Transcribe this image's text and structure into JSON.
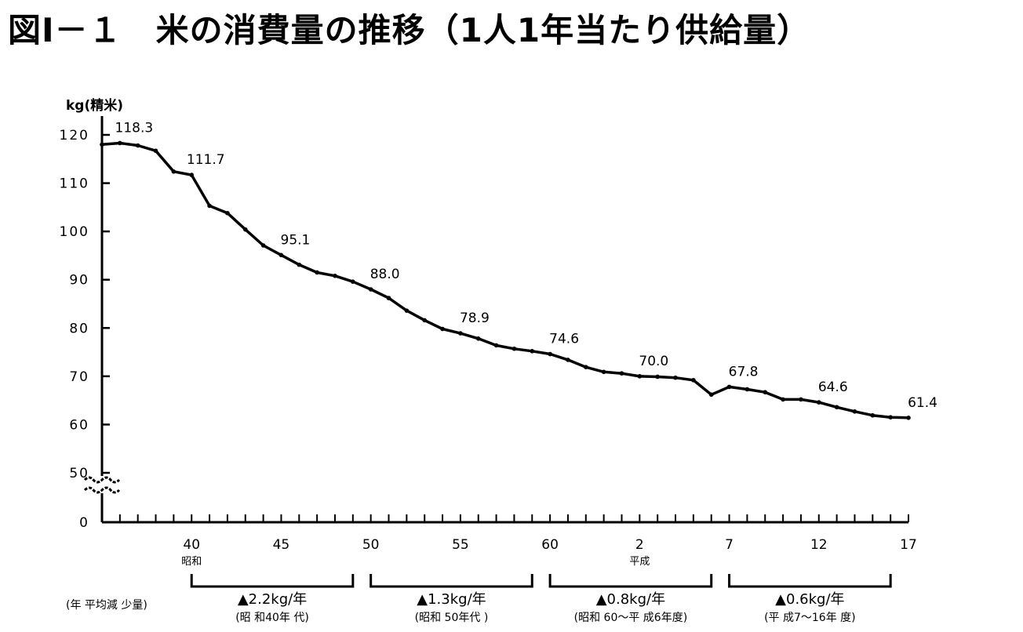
{
  "title": "図Ⅰ－１　米の消費量の推移（1人1年当たり供給量）",
  "chart_data": {
    "type": "line",
    "ylabel": "kg(精米)",
    "y_ticks": [
      0,
      50,
      60,
      70,
      80,
      90,
      100,
      110,
      120
    ],
    "y_break": [
      0,
      50
    ],
    "ylim": [
      0,
      120
    ],
    "x_ticks": [
      {
        "year": 1965,
        "label": "40",
        "era": "昭和"
      },
      {
        "year": 1970,
        "label": "45",
        "era": ""
      },
      {
        "year": 1975,
        "label": "50",
        "era": ""
      },
      {
        "year": 1980,
        "label": "55",
        "era": ""
      },
      {
        "year": 1985,
        "label": "60",
        "era": ""
      },
      {
        "year": 1990,
        "label": "2",
        "era": "平成"
      },
      {
        "year": 1995,
        "label": "7",
        "era": ""
      },
      {
        "year": 2000,
        "label": "12",
        "era": ""
      },
      {
        "year": 2005,
        "label": "17",
        "era": ""
      }
    ],
    "xlim": [
      1960,
      2005
    ],
    "series": [
      {
        "values": [
          {
            "x": 1960,
            "y": 118.0
          },
          {
            "x": 1961,
            "y": 118.3
          },
          {
            "x": 1962,
            "y": 117.8
          },
          {
            "x": 1963,
            "y": 116.7
          },
          {
            "x": 1964,
            "y": 112.4
          },
          {
            "x": 1965,
            "y": 111.7
          },
          {
            "x": 1966,
            "y": 105.3
          },
          {
            "x": 1967,
            "y": 103.8
          },
          {
            "x": 1968,
            "y": 100.4
          },
          {
            "x": 1969,
            "y": 97.1
          },
          {
            "x": 1970,
            "y": 95.1
          },
          {
            "x": 1971,
            "y": 93.1
          },
          {
            "x": 1972,
            "y": 91.5
          },
          {
            "x": 1973,
            "y": 90.8
          },
          {
            "x": 1974,
            "y": 89.6
          },
          {
            "x": 1975,
            "y": 88.0
          },
          {
            "x": 1976,
            "y": 86.2
          },
          {
            "x": 1977,
            "y": 83.6
          },
          {
            "x": 1978,
            "y": 81.6
          },
          {
            "x": 1979,
            "y": 79.8
          },
          {
            "x": 1980,
            "y": 78.9
          },
          {
            "x": 1981,
            "y": 77.8
          },
          {
            "x": 1982,
            "y": 76.4
          },
          {
            "x": 1983,
            "y": 75.7
          },
          {
            "x": 1984,
            "y": 75.2
          },
          {
            "x": 1985,
            "y": 74.6
          },
          {
            "x": 1986,
            "y": 73.4
          },
          {
            "x": 1987,
            "y": 71.9
          },
          {
            "x": 1988,
            "y": 70.9
          },
          {
            "x": 1989,
            "y": 70.6
          },
          {
            "x": 1990,
            "y": 70.0
          },
          {
            "x": 1991,
            "y": 69.9
          },
          {
            "x": 1992,
            "y": 69.7
          },
          {
            "x": 1993,
            "y": 69.2
          },
          {
            "x": 1994,
            "y": 66.2
          },
          {
            "x": 1995,
            "y": 67.8
          },
          {
            "x": 1996,
            "y": 67.3
          },
          {
            "x": 1997,
            "y": 66.7
          },
          {
            "x": 1998,
            "y": 65.2
          },
          {
            "x": 1999,
            "y": 65.2
          },
          {
            "x": 2000,
            "y": 64.6
          },
          {
            "x": 2001,
            "y": 63.6
          },
          {
            "x": 2002,
            "y": 62.7
          },
          {
            "x": 2003,
            "y": 61.9
          },
          {
            "x": 2004,
            "y": 61.5
          },
          {
            "x": 2005,
            "y": 61.4
          }
        ]
      }
    ],
    "data_labels": [
      {
        "x": 1961,
        "y": 118.3,
        "text": "118.3"
      },
      {
        "x": 1965,
        "y": 111.7,
        "text": "111.7"
      },
      {
        "x": 1970,
        "y": 95.1,
        "text": "95.1"
      },
      {
        "x": 1975,
        "y": 88.0,
        "text": "88.0"
      },
      {
        "x": 1980,
        "y": 78.9,
        "text": "78.9"
      },
      {
        "x": 1985,
        "y": 74.6,
        "text": "74.6"
      },
      {
        "x": 1990,
        "y": 70.0,
        "text": "70.0"
      },
      {
        "x": 1995,
        "y": 67.8,
        "text": "67.8"
      },
      {
        "x": 2000,
        "y": 64.6,
        "text": "64.6"
      },
      {
        "x": 2005,
        "y": 61.4,
        "text": "61.4"
      }
    ],
    "annual_decrease_label": "(年 平均減 少量)",
    "annual_decrease": [
      {
        "from": 1965,
        "to": 1974,
        "value": "▲2.2kg/年",
        "period": "(昭 和40年 代)"
      },
      {
        "from": 1975,
        "to": 1984,
        "value": "▲1.3kg/年",
        "period": "(昭和 50年代 )"
      },
      {
        "from": 1985,
        "to": 1994,
        "value": "▲0.8kg/年",
        "period": "(昭和 60～平 成6年度)"
      },
      {
        "from": 1995,
        "to": 2004,
        "value": "▲0.6kg/年",
        "period": "(平 成7～16年 度)"
      }
    ]
  }
}
